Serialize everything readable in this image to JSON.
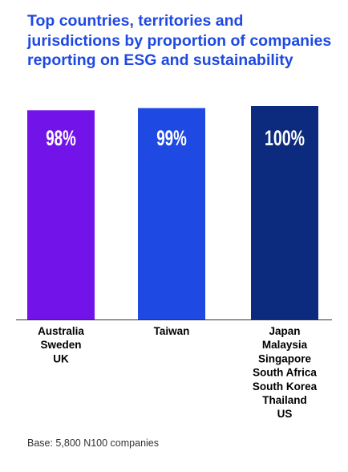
{
  "chart_data": {
    "type": "bar",
    "title": "Top countries, territories and jurisdictions by proportion of companies reporting on ESG and sustainability",
    "categories": [
      [
        "Australia",
        "Sweden",
        "UK"
      ],
      [
        "Taiwan"
      ],
      [
        "Japan",
        "Malaysia",
        "Singapore",
        "South Africa",
        "South Korea",
        "Thailand",
        "US"
      ]
    ],
    "values": [
      98,
      99,
      100
    ],
    "value_labels": [
      "98%",
      "99%",
      "100%"
    ],
    "colors": [
      "#7213ea",
      "#1e49e2",
      "#0c2a7e"
    ],
    "ylim": [
      0,
      100
    ],
    "grid": false,
    "legend": "none"
  },
  "footnote": "Base: 5,800 N100 companies"
}
